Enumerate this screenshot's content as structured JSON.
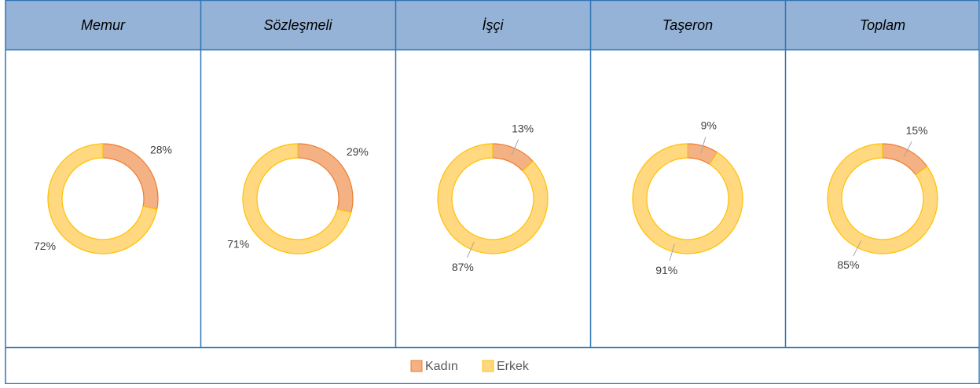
{
  "chart_data": [
    {
      "type": "donut",
      "title": "Memur",
      "categories": [
        "Kadın",
        "Erkek"
      ],
      "values": [
        28,
        72
      ],
      "value_labels": [
        "28%",
        "72%"
      ],
      "colors": [
        "#f4b183",
        "#ffd880"
      ]
    },
    {
      "type": "donut",
      "title": "Sözleşmeli",
      "categories": [
        "Kadın",
        "Erkek"
      ],
      "values": [
        29,
        71
      ],
      "value_labels": [
        "29%",
        "71%"
      ],
      "colors": [
        "#f4b183",
        "#ffd880"
      ]
    },
    {
      "type": "donut",
      "title": "İşçi",
      "categories": [
        "Kadın",
        "Erkek"
      ],
      "values": [
        13,
        87
      ],
      "value_labels": [
        "13%",
        "87%"
      ],
      "colors": [
        "#f4b183",
        "#ffd880"
      ]
    },
    {
      "type": "donut",
      "title": "Taşeron",
      "categories": [
        "Kadın",
        "Erkek"
      ],
      "values": [
        9,
        91
      ],
      "value_labels": [
        "9%",
        "91%"
      ],
      "colors": [
        "#f4b183",
        "#ffd880"
      ]
    },
    {
      "type": "donut",
      "title": "Toplam",
      "categories": [
        "Kadın",
        "Erkek"
      ],
      "values": [
        15,
        85
      ],
      "value_labels": [
        "15%",
        "85%"
      ],
      "colors": [
        "#f4b183",
        "#ffd880"
      ]
    }
  ]
}
